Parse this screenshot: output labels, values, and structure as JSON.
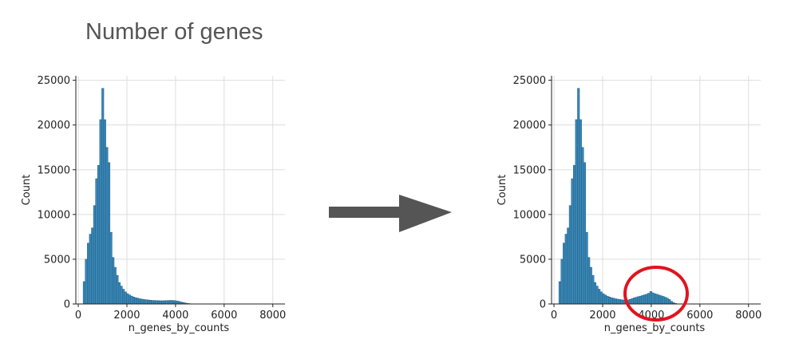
{
  "title": "Number of genes",
  "colors": {
    "bar": "#3a86b5",
    "bar_edge": "#1f5f86",
    "grid": "#dddddd",
    "arrow": "#555555",
    "circle": "#e0141e"
  },
  "chart_data": [
    {
      "type": "bar",
      "xlabel": "n_genes_by_counts",
      "ylabel": "Count",
      "xlim": [
        -100,
        8500
      ],
      "ylim": [
        0,
        25500
      ],
      "xticks": [
        "0",
        "2000",
        "4000",
        "6000",
        "8000"
      ],
      "xtick_values": [
        0,
        2000,
        4000,
        6000,
        8000
      ],
      "yticks": [
        "0",
        "5000",
        "10000",
        "15000",
        "20000",
        "25000"
      ],
      "ytick_values": [
        0,
        5000,
        10000,
        15000,
        20000,
        25000
      ],
      "grid": true,
      "bin_start": 200,
      "bin_width": 85,
      "values": [
        2500,
        5000,
        6800,
        7800,
        8500,
        11000,
        14000,
        15500,
        20600,
        24100,
        20600,
        17500,
        15800,
        8000,
        5200,
        4100,
        3200,
        2400,
        2000,
        1650,
        1350,
        1150,
        1000,
        880,
        780,
        700,
        640,
        580,
        540,
        500,
        470,
        450,
        420,
        400,
        390,
        380,
        370,
        360,
        360,
        370,
        380,
        390,
        400,
        390,
        370,
        330,
        280,
        220,
        160,
        110,
        70,
        40,
        20,
        10
      ]
    },
    {
      "type": "bar",
      "xlabel": "n_genes_by_counts",
      "ylabel": "Count",
      "xlim": [
        -100,
        8500
      ],
      "ylim": [
        0,
        25500
      ],
      "xticks": [
        "0",
        "2000",
        "4000",
        "6000",
        "8000"
      ],
      "xtick_values": [
        0,
        2000,
        4000,
        6000,
        8000
      ],
      "yticks": [
        "0",
        "5000",
        "10000",
        "15000",
        "20000",
        "25000"
      ],
      "ytick_values": [
        0,
        5000,
        10000,
        15000,
        20000,
        25000
      ],
      "grid": true,
      "bin_start": 200,
      "bin_width": 85,
      "values": [
        2500,
        5000,
        6800,
        7800,
        8500,
        11000,
        14000,
        15500,
        20600,
        24100,
        20600,
        17500,
        15800,
        8000,
        5200,
        4100,
        3200,
        2400,
        2000,
        1650,
        1350,
        1150,
        1000,
        880,
        780,
        700,
        640,
        580,
        540,
        500,
        470,
        450,
        420,
        450,
        520,
        600,
        680,
        750,
        820,
        880,
        950,
        1020,
        1100,
        1200,
        1400,
        1250,
        1150,
        1080,
        1000,
        920,
        850,
        750,
        650,
        500,
        300,
        150,
        60,
        20
      ]
    }
  ]
}
